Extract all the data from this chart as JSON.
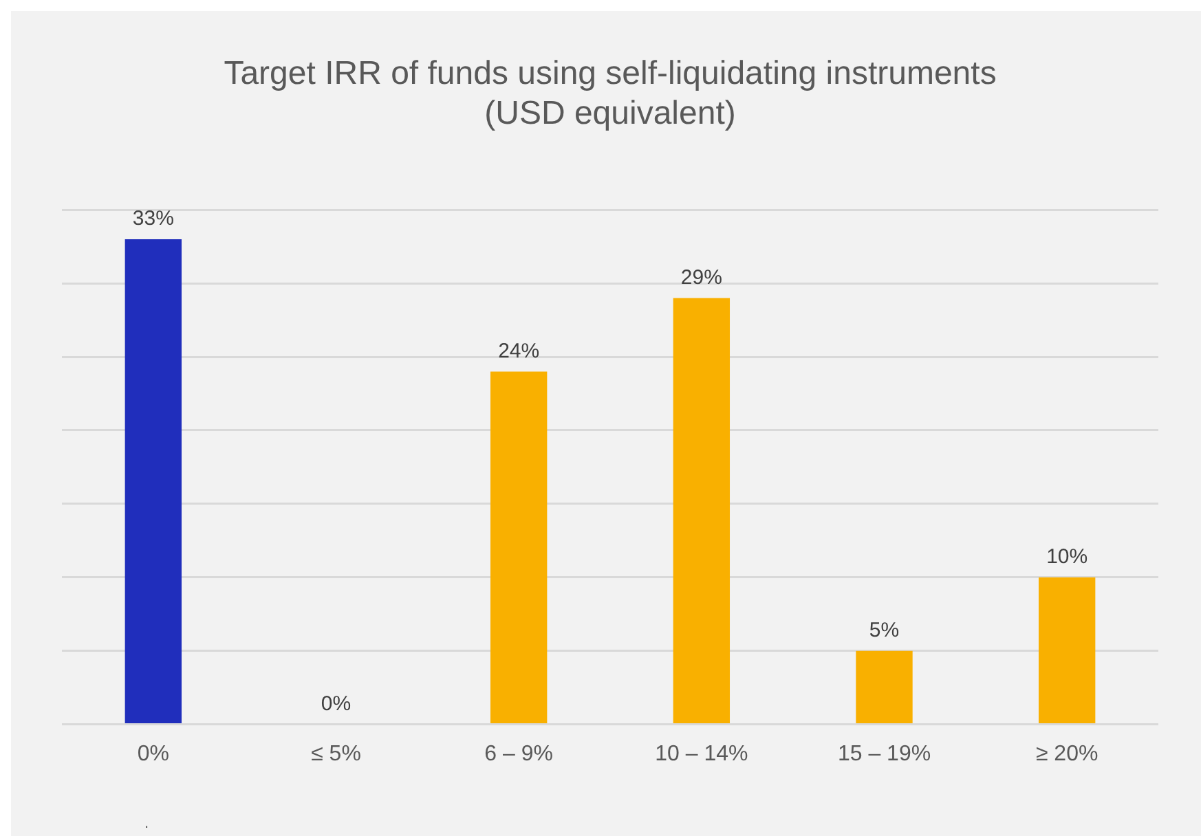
{
  "chart_data": {
    "type": "bar",
    "title": "Target IRR of funds using self-liquidating instruments (USD equivalent)",
    "categories": [
      "0%",
      "≤ 5%",
      "6 – 9%",
      "10 – 14%",
      "15 – 19%",
      "≥ 20%"
    ],
    "values": [
      33,
      0,
      24,
      29,
      5,
      10
    ],
    "colors": [
      "#202ebc",
      "#f9b000",
      "#f9b000",
      "#f9b000",
      "#f9b000",
      "#f9b000"
    ],
    "value_labels": [
      "33%",
      "0%",
      "24%",
      "29%",
      "5%",
      "10%"
    ],
    "ylim": [
      0,
      35
    ],
    "yticks": [
      {
        "value": 0,
        "label": null
      },
      {
        "value": 5,
        "label": null
      },
      {
        "value": 10,
        "label": null
      },
      {
        "value": 15,
        "label": null
      },
      {
        "value": 20,
        "label": null
      },
      {
        "value": 25,
        "label": null
      },
      {
        "value": 30,
        "label": null
      },
      {
        "value": 35,
        "label": null
      }
    ],
    "grid": "y",
    "tick_labels": "x",
    "annotations": [
      "."
    ]
  }
}
